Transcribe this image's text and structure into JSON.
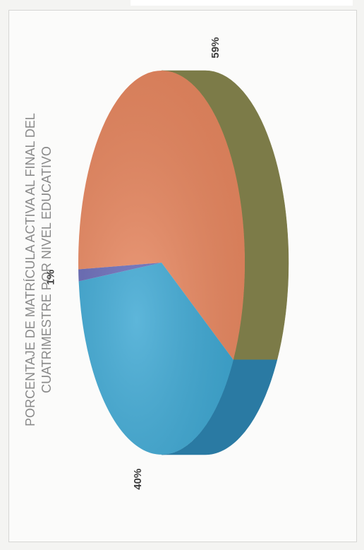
{
  "chart_data": {
    "type": "pie",
    "title_lines": [
      "PORCENTAJE DE MATRÍCULA ACTIVA AL FINAL DEL",
      "CUATRIMESTRE POR NIVEL EDUCATIVO"
    ],
    "slices": [
      {
        "value": 59,
        "label": "59%",
        "color": "#e9875f",
        "side_color": "#7c7b48"
      },
      {
        "value": 40,
        "label": "40%",
        "color": "#3aa6d2",
        "side_color": "#2a7aa3"
      },
      {
        "value": 1,
        "label": "1%",
        "color": "#6466b5",
        "side_color": "#4a4c8c"
      }
    ],
    "legend": "none"
  },
  "colors": {
    "title": "#8a8a8a",
    "label": "#3c3c3c"
  }
}
